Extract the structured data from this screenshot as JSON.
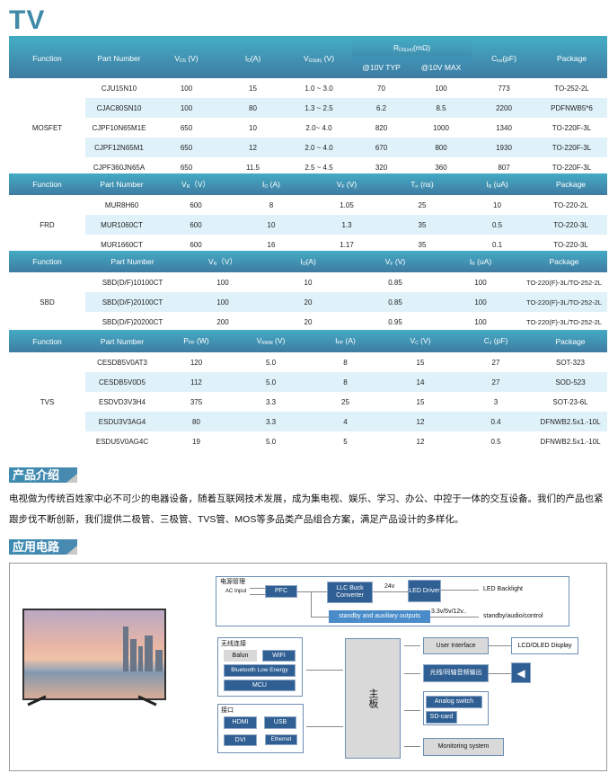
{
  "title": "TV",
  "colors": {
    "header_top": "#44abc4",
    "header_bottom": "#3f7ba2",
    "zebra": "#dff2f9",
    "diagram_blue": "#2f5f93"
  },
  "tables": [
    {
      "function": "MOSFET",
      "headers": [
        "Function",
        "Part  Number",
        "V|DS| (V)",
        "I|D|(A)",
        "V|GS(th)| (V)",
        "R|DS(on)|(mΩ)",
        "C|iss|(pF)",
        "Package"
      ],
      "subheaders": [
        "@10V  TYP",
        "@10V MAX"
      ],
      "rows": [
        [
          "CJU15N10",
          "100",
          "15",
          "1.0 ~ 3.0",
          "70",
          "100",
          "773",
          "TO-252-2L"
        ],
        [
          "CJAC80SN10",
          "100",
          "80",
          "1.3 ~ 2.5",
          "6.2",
          "8.5",
          "2200",
          "PDFNWB5*6"
        ],
        [
          "CJPF10N65M1E",
          "650",
          "10",
          "2.0~ 4.0",
          "820",
          "1000",
          "1340",
          "TO-220F-3L"
        ],
        [
          "CJPF12N65M1",
          "650",
          "12",
          "2.0 ~ 4.0",
          "670",
          "800",
          "1930",
          "TO-220F-3L"
        ],
        [
          "CJPF360JN65A",
          "650",
          "11.5",
          "2.5 ~ 4.5",
          "320",
          "360",
          "807",
          "TO-220F-3L"
        ]
      ]
    },
    {
      "function": "FRD",
      "headers": [
        "Function",
        "Part Number",
        "V|R|（V）",
        "I|O| (A)",
        "V|F| (V)",
        "T|rr| (ns)",
        "I|R| (uA)",
        "Package"
      ],
      "rows": [
        [
          "MUR8H60",
          "600",
          "8",
          "1.05",
          "25",
          "10",
          "TO-220-2L"
        ],
        [
          "MUR1060CT",
          "600",
          "10",
          "1.3",
          "35",
          "0.5",
          "TO-220-3L"
        ],
        [
          "MUR1660CT",
          "600",
          "16",
          "1.17",
          "35",
          "0.1",
          "TO-220-3L"
        ]
      ]
    },
    {
      "function": "SBD",
      "headers": [
        "Function",
        "Part Number",
        "V|R|（V）",
        "I|O|(A)",
        "V|F| (V)",
        "I|R| (uA)",
        "Package"
      ],
      "rows": [
        [
          "SBD(D/F)10100CT",
          "100",
          "10",
          "0.85",
          "100",
          "TO-220(F)-3L/TO-252-2L"
        ],
        [
          "SBD(D/F)20100CT",
          "100",
          "20",
          "0.85",
          "100",
          "TO-220(F)-3L/TO-252-2L"
        ],
        [
          "SBD(D/F)20200CT",
          "200",
          "20",
          "0.95",
          "100",
          "TO-220(F)-3L/TO-252-2L"
        ]
      ]
    },
    {
      "function": "TVS",
      "headers": [
        "Function",
        "Part  Number",
        "P|PP|  (W)",
        "V|RWM|  (V)",
        "I|PP| (A)",
        "V|C|  (V)",
        "C|J|  (pF)",
        "Package"
      ],
      "rows": [
        [
          "CESDB5V0AT3",
          "120",
          "5.0",
          "8",
          "15",
          "27",
          "SOT-323"
        ],
        [
          "CESDB5V0D5",
          "112",
          "5.0",
          "8",
          "14",
          "27",
          "SOD-523"
        ],
        [
          "ESDVD3V3H4",
          "375",
          "3.3",
          "25",
          "15",
          "3",
          "SOT-23-6L"
        ],
        [
          "ESDU3V3AG4",
          "80",
          "3.3",
          "4",
          "12",
          "0.4",
          "DFNWB2.5x1.-10L"
        ],
        [
          "ESDU5V0AG4C",
          "19",
          "5.0",
          "5",
          "12",
          "0.5",
          "DFNWB2.5x1.-10L"
        ]
      ]
    }
  ],
  "intro": {
    "heading": "产品介绍",
    "text": "电视做为传统百姓家中必不可少的电器设备，随着互联网技术发展，成为集电视、娱乐、学习、办公、中控于一体的交互设备。我们的产品也紧跟步伐不断创新，我们提供二极管、三极管、TVS管、MOS等多品类产品组合方案，满足产品设计的多样化。"
  },
  "circuit": {
    "heading": "应用电路",
    "power": {
      "label": "电源管理",
      "ac_input": "AC Input",
      "pfc": "PFC",
      "llc": "LLC Buck Converter",
      "v24": "24v",
      "led_driver": "LED Driver",
      "led_backlight": "LED Backlight",
      "standby": "standby and auxiliary outputs",
      "voltages": "3.3v/5v/12v..",
      "standby_out": "standby/audio/control"
    },
    "wireless": {
      "label": "无线连接",
      "balun": "Balun",
      "wifi": "WIFI",
      "ble": "Bluetooth Low Energy",
      "mcu": "MCU"
    },
    "interface": {
      "label": "接口",
      "hdmi": "HDMI",
      "usb": "USB",
      "dvi": "DVI",
      "ethernet": "Ethernet"
    },
    "mainboard": "主板",
    "user_interface": "User Interface",
    "display": "LCD/OLED Display",
    "audio_out": "光线/同轴音频输出",
    "analog_switch": "Analog switch",
    "sd_card": "SD-card",
    "monitoring": "Monitoring system"
  }
}
